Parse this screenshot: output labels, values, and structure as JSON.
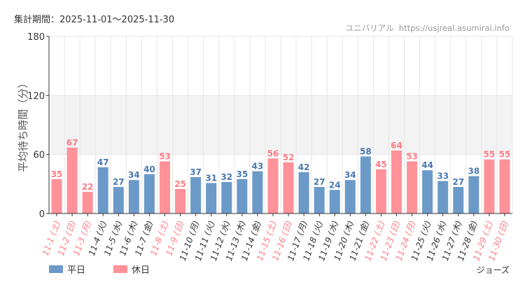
{
  "period_label": "集計期間：2025-11-01～2025-11-30",
  "credit": "ユニバリアル  https://usjreal.asumirai.info",
  "attraction": "ジョーズ",
  "colors": {
    "weekday": "#6b9ac9",
    "holiday": "#ff9199",
    "weekday_text": "#4a79b0",
    "holiday_text": "#ff7b85",
    "axis_text": "#333333"
  },
  "chart_data": {
    "type": "bar",
    "title": "",
    "xlabel": "",
    "ylabel": "平均待ち時間（分）",
    "ylim": [
      0,
      180
    ],
    "yticks": [
      0,
      60,
      120,
      180
    ],
    "grid": true,
    "legend_position": "bottom-left",
    "legend": [
      {
        "name": "平日",
        "kind": "weekday"
      },
      {
        "name": "休日",
        "kind": "holiday"
      }
    ],
    "categories": [
      "11-1 (土)",
      "11-2 (日)",
      "11-3 (月)",
      "11-4 (火)",
      "11-5 (水)",
      "11-6 (木)",
      "11-7 (金)",
      "11-8 (土)",
      "11-9 (日)",
      "11-10 (月)",
      "11-11 (火)",
      "11-12 (水)",
      "11-13 (木)",
      "11-14 (金)",
      "11-15 (土)",
      "11-16 (日)",
      "11-17 (月)",
      "11-18 (火)",
      "11-19 (水)",
      "11-20 (木)",
      "11-21 (金)",
      "11-22 (土)",
      "11-23 (日)",
      "11-24 (月)",
      "11-25 (火)",
      "11-26 (水)",
      "11-27 (木)",
      "11-28 (金)",
      "11-29 (土)",
      "11-30 (日)"
    ],
    "values": [
      35,
      67,
      22,
      47,
      27,
      34,
      40,
      53,
      25,
      37,
      31,
      32,
      35,
      43,
      56,
      52,
      42,
      27,
      24,
      34,
      58,
      45,
      64,
      53,
      44,
      33,
      27,
      38,
      55,
      55
    ],
    "holiday": [
      true,
      true,
      true,
      false,
      false,
      false,
      false,
      true,
      true,
      false,
      false,
      false,
      false,
      false,
      true,
      true,
      false,
      false,
      false,
      false,
      false,
      true,
      true,
      true,
      false,
      false,
      false,
      false,
      true,
      true
    ]
  }
}
